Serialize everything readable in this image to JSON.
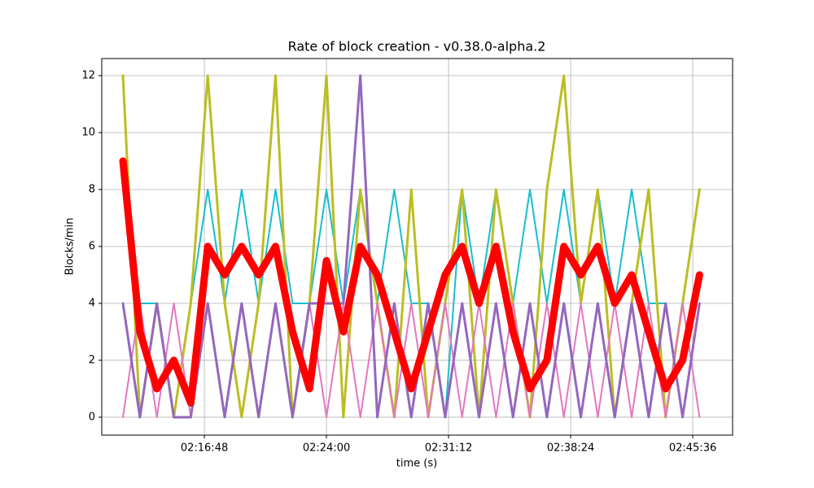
{
  "chart_data": {
    "type": "line",
    "title": "Rate of block creation  -  v0.38.0-alpha.2",
    "xlabel": "time (s)",
    "ylabel": "Blocks/min",
    "x": [
      "02:12:00",
      "02:13:00",
      "02:14:00",
      "02:15:00",
      "02:16:00",
      "02:17:00",
      "02:18:00",
      "02:19:00",
      "02:20:00",
      "02:21:00",
      "02:22:00",
      "02:23:00",
      "02:24:00",
      "02:25:00",
      "02:26:00",
      "02:27:00",
      "02:28:00",
      "02:29:00",
      "02:30:00",
      "02:31:00",
      "02:32:00",
      "02:33:00",
      "02:34:00",
      "02:35:00",
      "02:36:00",
      "02:37:00",
      "02:38:00",
      "02:39:00",
      "02:40:00",
      "02:41:00",
      "02:42:00",
      "02:43:00",
      "02:44:00",
      "02:45:00",
      "02:46:00"
    ],
    "series": [
      {
        "color": "#17becf",
        "width": 2,
        "values": [
          8,
          4,
          4,
          0,
          4,
          8,
          4,
          8,
          4,
          8,
          4,
          4,
          8,
          4,
          8,
          4,
          8,
          4,
          4,
          0,
          8,
          4,
          8,
          4,
          8,
          4,
          8,
          4,
          8,
          4,
          8,
          4,
          4,
          0,
          4
        ]
      },
      {
        "color": "#bcbd22",
        "width": 3,
        "values": [
          12,
          0,
          4,
          0,
          4,
          12,
          4,
          0,
          4,
          12,
          0,
          4,
          12,
          0,
          8,
          4,
          0,
          8,
          0,
          4,
          8,
          0,
          8,
          4,
          0,
          8,
          12,
          4,
          8,
          0,
          4,
          8,
          0,
          4,
          8
        ]
      },
      {
        "color": "#e377c2",
        "width": 2,
        "values": [
          0,
          4,
          0,
          4,
          0,
          4,
          0,
          4,
          0,
          4,
          0,
          4,
          0,
          4,
          0,
          4,
          0,
          4,
          0,
          4,
          0,
          4,
          0,
          4,
          0,
          4,
          0,
          4,
          0,
          4,
          0,
          4,
          0,
          4,
          0
        ]
      },
      {
        "color": "#9467bd",
        "width": 3,
        "values": [
          4,
          0,
          4,
          0,
          0,
          4,
          0,
          4,
          0,
          4,
          0,
          4,
          4,
          4,
          12,
          0,
          4,
          0,
          4,
          0,
          4,
          0,
          4,
          0,
          4,
          0,
          4,
          0,
          4,
          0,
          4,
          0,
          4,
          0,
          4
        ]
      },
      {
        "color": "#ff0000",
        "width": 9,
        "values": [
          9,
          3,
          1,
          2,
          0.5,
          6,
          5,
          6,
          5,
          6,
          3,
          1,
          5.5,
          3,
          6,
          5,
          3,
          1,
          3,
          5,
          6,
          4,
          6,
          3,
          1,
          2,
          6,
          5,
          6,
          4,
          5,
          3,
          1,
          2,
          5
        ]
      }
    ],
    "xlim": [
      "02:10:45",
      "02:47:57"
    ],
    "xticks": [
      "02:16:48",
      "02:24:00",
      "02:31:12",
      "02:38:24",
      "02:45:36"
    ],
    "ylim": [
      -0.63,
      12.6
    ],
    "yticks": [
      0,
      2,
      4,
      6,
      8,
      10,
      12
    ],
    "grid": true
  }
}
